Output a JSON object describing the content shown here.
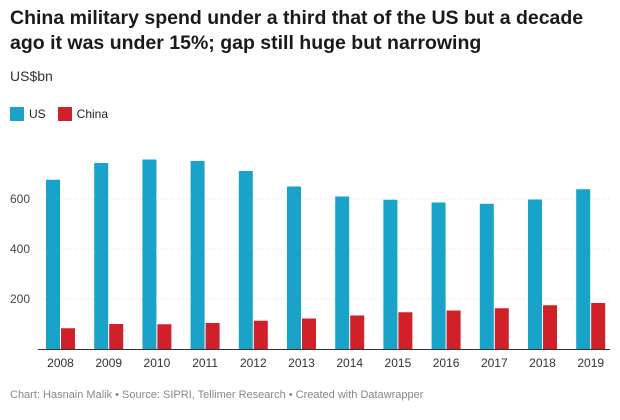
{
  "title": "China military spend under a third that of the US but a decade ago it was under 15%; gap still huge but narrowing",
  "subtitle": "US$bn",
  "legend": [
    {
      "name": "US",
      "color": "#1aa3c9"
    },
    {
      "name": "China",
      "color": "#d0202a"
    }
  ],
  "footer": "Chart: Hasnain Malik • Source: SIPRI, Tellimer Research • Created with Datawrapper",
  "chart_data": {
    "type": "bar",
    "title": "China military spend under a third that of the US but a decade ago it was under 15%; gap still huge but narrowing",
    "ylabel": "US$bn",
    "xlabel": "",
    "ylim": [
      0,
      760
    ],
    "yticks": [
      200,
      400,
      600
    ],
    "grid": true,
    "legend_position": "top-left",
    "categories": [
      "2008",
      "2009",
      "2010",
      "2011",
      "2012",
      "2013",
      "2014",
      "2015",
      "2016",
      "2017",
      "2018",
      "2019"
    ],
    "series": [
      {
        "name": "US",
        "color": "#1aa3c9",
        "values": [
          677,
          744,
          758,
          752,
          712,
          650,
          610,
          597,
          586,
          581,
          598,
          639
        ]
      },
      {
        "name": "China",
        "color": "#d0202a",
        "values": [
          83,
          100,
          99,
          104,
          113,
          122,
          134,
          147,
          154,
          163,
          175,
          184
        ]
      }
    ]
  }
}
